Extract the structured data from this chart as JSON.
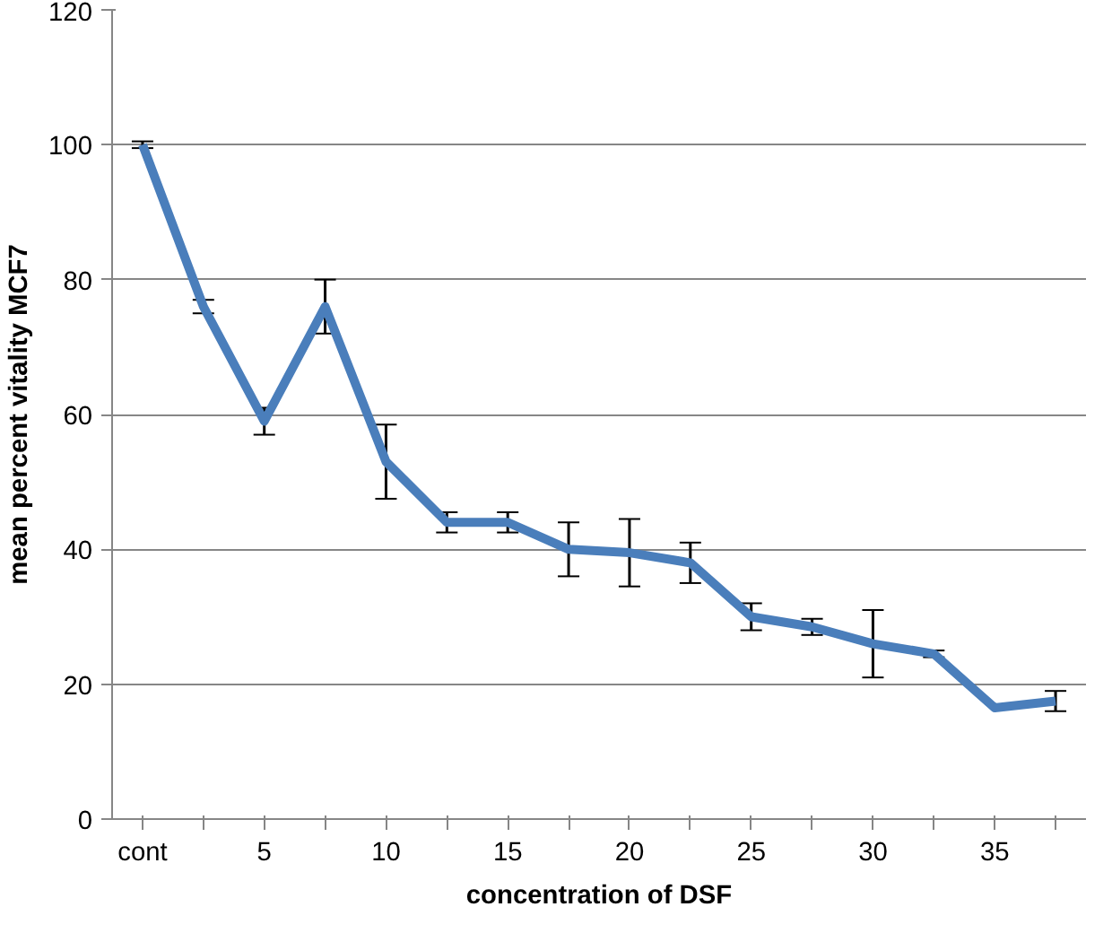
{
  "chart_data": {
    "type": "line",
    "xlabel": "concentration of DSF",
    "ylabel": "mean percent vitality MCF7",
    "categories": [
      "cont",
      null,
      "5",
      null,
      "10",
      null,
      "15",
      null,
      "20",
      null,
      "25",
      null,
      "30",
      null,
      "35",
      null
    ],
    "series": [
      {
        "color": "#4a7ebb",
        "values": [
          100,
          76,
          59,
          76,
          53,
          44,
          44,
          40,
          39.5,
          38,
          30,
          28.5,
          26,
          24.5,
          16.5,
          17.5
        ],
        "errors": [
          0.5,
          1,
          2,
          4,
          5.5,
          1.5,
          1.5,
          4,
          5,
          3,
          2,
          1.2,
          5,
          0.5,
          null,
          1.5
        ]
      }
    ],
    "ylim": [
      0,
      120
    ],
    "yticks": [
      0,
      20,
      40,
      60,
      80,
      100,
      120
    ],
    "grid": "y",
    "marker": "none",
    "line_style": "solid"
  }
}
